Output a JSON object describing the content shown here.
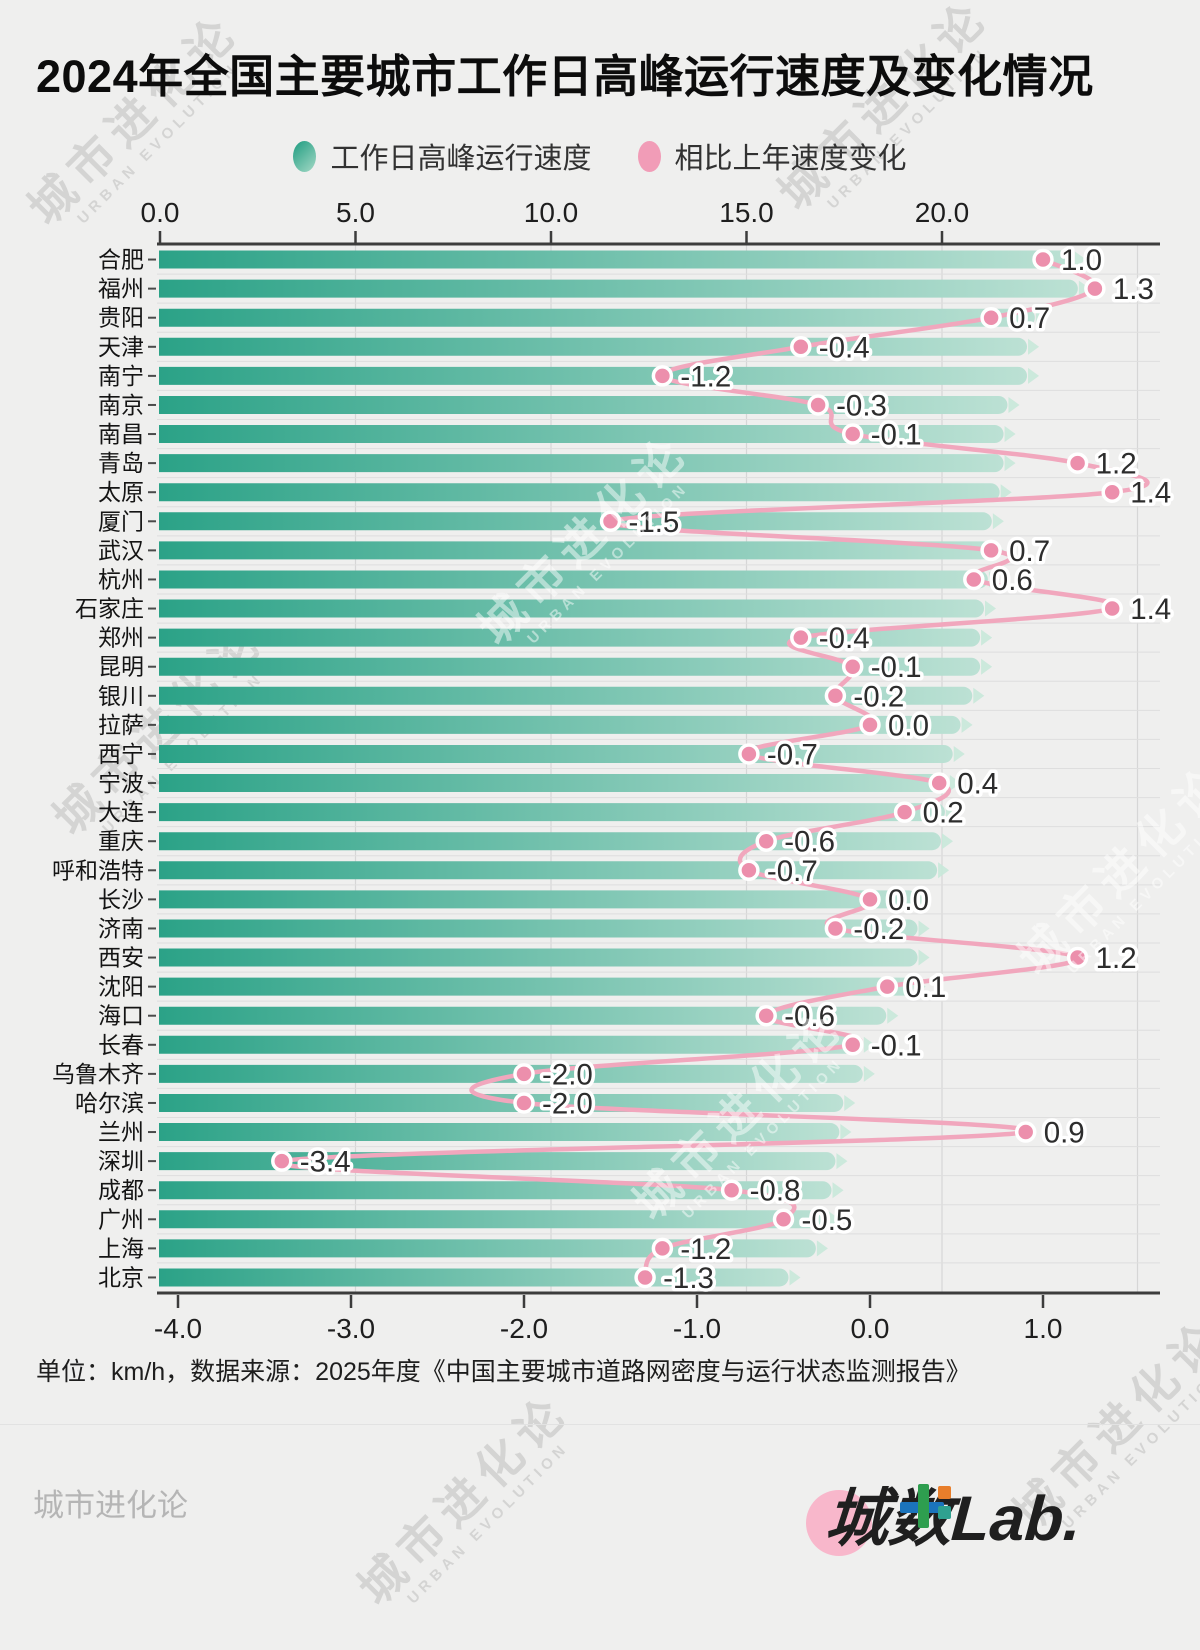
{
  "header": {
    "title": "2024年全国主要城市工作日高峰运行速度及变化情况"
  },
  "legend": {
    "items": [
      {
        "label": "工作日高峰运行速度",
        "color": "#2BA287"
      },
      {
        "label": "相比上年速度变化",
        "color": "#F19CB7"
      }
    ]
  },
  "chart_data": {
    "type": "bar+line",
    "orientation": "horizontal",
    "categories": [
      "合肥",
      "福州",
      "贵阳",
      "天津",
      "南宁",
      "南京",
      "南昌",
      "青岛",
      "太原",
      "厦门",
      "武汉",
      "杭州",
      "石家庄",
      "郑州",
      "昆明",
      "银川",
      "拉萨",
      "西宁",
      "宁波",
      "大连",
      "重庆",
      "呼和浩特",
      "长沙",
      "济南",
      "西安",
      "沈阳",
      "海口",
      "长春",
      "乌鲁木齐",
      "哈尔滨",
      "兰州",
      "深圳",
      "成都",
      "广州",
      "上海",
      "北京"
    ],
    "series": [
      {
        "name": "工作日高峰运行速度",
        "type": "bar",
        "unit": "km/h",
        "color_start": "#2BA287",
        "color_end": "#BCE1D4",
        "values": [
          23.4,
          23.5,
          22.4,
          22.2,
          22.2,
          21.7,
          21.6,
          21.6,
          21.5,
          21.3,
          21.3,
          21.2,
          21.1,
          21.0,
          21.0,
          20.8,
          20.5,
          20.3,
          20.2,
          20.1,
          20.0,
          19.9,
          19.4,
          19.4,
          19.4,
          19.3,
          18.6,
          18.0,
          18.0,
          17.5,
          17.4,
          17.3,
          17.2,
          17.1,
          16.8,
          16.1
        ]
      },
      {
        "name": "相比上年速度变化",
        "type": "line",
        "unit": "km/h",
        "line_color": "#F1A7BD",
        "dot_color": "#EC8FAC",
        "values": [
          1.0,
          1.3,
          0.7,
          -0.4,
          -1.2,
          -0.3,
          -0.1,
          1.2,
          1.4,
          -1.5,
          0.7,
          0.6,
          1.4,
          -0.4,
          -0.1,
          -0.2,
          0.0,
          -0.7,
          0.4,
          0.2,
          -0.6,
          -0.7,
          0.0,
          -0.2,
          1.2,
          0.1,
          -0.6,
          -0.1,
          -2.0,
          -2.0,
          0.9,
          -3.4,
          -0.8,
          -0.5,
          -1.2,
          -1.3
        ]
      }
    ],
    "top_axis": {
      "ticks": [
        "0.0",
        "5.0",
        "10.0",
        "15.0",
        "20.0"
      ],
      "tick_values": [
        0,
        5,
        10,
        15,
        20
      ],
      "range": [
        0,
        25.6
      ],
      "applies_to": "工作日高峰运行速度"
    },
    "bottom_axis": {
      "ticks": [
        "-4.0",
        "-3.0",
        "-2.0",
        "-1.0",
        "0.0",
        "1.0"
      ],
      "tick_values": [
        -4,
        -3,
        -2,
        -1,
        0,
        1
      ],
      "range": [
        -4.12,
        1.68
      ],
      "applies_to": "相比上年速度变化"
    },
    "grid": true,
    "legend_position": "top"
  },
  "footer": {
    "note": "单位：km/h，数据来源：2025年度《中国主要城市道路网密度与运行状态监测报告》",
    "brand": "城市进化论",
    "logo_cn": "城数",
    "logo_en": "Lab."
  },
  "watermark": {
    "line1": "城市进化论",
    "line2": "URBAN EVOLUTION"
  },
  "colors": {
    "background": "#EFEFEE",
    "bar_gradient_start": "#2BA287",
    "bar_gradient_end": "#BCE1D4",
    "bar_tip": "#C9E8DA",
    "line": "#F1A7BD",
    "dot": "#EC8FAC",
    "axis": "#3C3C3C",
    "gridline": "#DBDBDB",
    "label_text": "#2D2D2D"
  }
}
